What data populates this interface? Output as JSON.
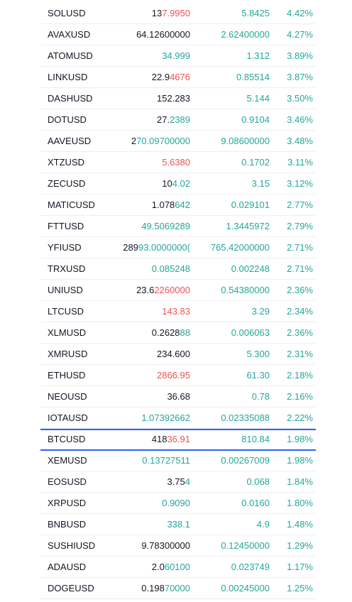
{
  "colors": {
    "text": "#131722",
    "up": "#26a69a",
    "down": "#ef5350",
    "selected_border": "#2962ff",
    "row_divider": "#eceef2"
  },
  "watchlist": {
    "selected_symbol": "BTCUSD",
    "rows": [
      {
        "symbol": "SOLUSD",
        "last_prefix": "13",
        "last_flash": "7.9950",
        "flash": "down",
        "change": "5.8425",
        "change_pct": "4.42%"
      },
      {
        "symbol": "AVAXUSD",
        "last_prefix": "64.12600000",
        "last_flash": "",
        "flash": "none",
        "change": "2.62400000",
        "change_pct": "4.27%"
      },
      {
        "symbol": "ATOMUSD",
        "last_prefix": "",
        "last_flash": "34.999",
        "flash": "up",
        "change": "1.312",
        "change_pct": "3.89%"
      },
      {
        "symbol": "LINKUSD",
        "last_prefix": "22.9",
        "last_flash": "4676",
        "flash": "down",
        "change": "0.85514",
        "change_pct": "3.87%"
      },
      {
        "symbol": "DASHUSD",
        "last_prefix": "152.283",
        "last_flash": "",
        "flash": "none",
        "change": "5.144",
        "change_pct": "3.50%"
      },
      {
        "symbol": "DOTUSD",
        "last_prefix": "27.",
        "last_flash": "2389",
        "flash": "up",
        "change": "0.9104",
        "change_pct": "3.46%"
      },
      {
        "symbol": "AAVEUSD",
        "last_prefix": "2",
        "last_flash": "70.09700000",
        "flash": "up",
        "change": "9.08600000",
        "change_pct": "3.48%"
      },
      {
        "symbol": "XTZUSD",
        "last_prefix": "",
        "last_flash": "5.6380",
        "flash": "down",
        "change": "0.1702",
        "change_pct": "3.11%"
      },
      {
        "symbol": "ZECUSD",
        "last_prefix": "10",
        "last_flash": "4.02",
        "flash": "up",
        "change": "3.15",
        "change_pct": "3.12%"
      },
      {
        "symbol": "MATICUSD",
        "last_prefix": "1.078",
        "last_flash": "642",
        "flash": "up",
        "change": "0.029101",
        "change_pct": "2.77%"
      },
      {
        "symbol": "FTTUSD",
        "last_prefix": "",
        "last_flash": "49.5069289",
        "flash": "up",
        "change": "1.3445972",
        "change_pct": "2.79%"
      },
      {
        "symbol": "YFIUSD",
        "last_prefix": "289",
        "last_flash": "93.0000000(",
        "flash": "up",
        "change": "765.42000000",
        "change_pct": "2.71%"
      },
      {
        "symbol": "TRXUSD",
        "last_prefix": "",
        "last_flash": "0.085248",
        "flash": "up",
        "change": "0.002248",
        "change_pct": "2.71%"
      },
      {
        "symbol": "UNIUSD",
        "last_prefix": "23.6",
        "last_flash": "2260000",
        "flash": "down",
        "change": "0.54380000",
        "change_pct": "2.36%"
      },
      {
        "symbol": "LTCUSD",
        "last_prefix": "",
        "last_flash": "143.83",
        "flash": "down",
        "change": "3.29",
        "change_pct": "2.34%"
      },
      {
        "symbol": "XLMUSD",
        "last_prefix": "0.2628",
        "last_flash": "88",
        "flash": "up",
        "change": "0.006063",
        "change_pct": "2.36%"
      },
      {
        "symbol": "XMRUSD",
        "last_prefix": "234.600",
        "last_flash": "",
        "flash": "none",
        "change": "5.300",
        "change_pct": "2.31%"
      },
      {
        "symbol": "ETHUSD",
        "last_prefix": "",
        "last_flash": "2866.95",
        "flash": "down",
        "change": "61.30",
        "change_pct": "2.18%"
      },
      {
        "symbol": "NEOUSD",
        "last_prefix": "36.68",
        "last_flash": "",
        "flash": "none",
        "change": "0.78",
        "change_pct": "2.16%"
      },
      {
        "symbol": "IOTAUSD",
        "last_prefix": "",
        "last_flash": "1.07392662",
        "flash": "up",
        "change": "0.02335088",
        "change_pct": "2.22%"
      },
      {
        "symbol": "BTCUSD",
        "last_prefix": "418",
        "last_flash": "36.91",
        "flash": "down",
        "change": "810.84",
        "change_pct": "1.98%"
      },
      {
        "symbol": "XEMUSD",
        "last_prefix": "",
        "last_flash": "0.13727511",
        "flash": "up",
        "change": "0.00267009",
        "change_pct": "1.98%"
      },
      {
        "symbol": "EOSUSD",
        "last_prefix": "3.75",
        "last_flash": "4",
        "flash": "up",
        "change": "0.068",
        "change_pct": "1.84%"
      },
      {
        "symbol": "XRPUSD",
        "last_prefix": "",
        "last_flash": "0.9090",
        "flash": "up",
        "change": "0.0160",
        "change_pct": "1.80%"
      },
      {
        "symbol": "BNBUSD",
        "last_prefix": "",
        "last_flash": "338.1",
        "flash": "up",
        "change": "4.9",
        "change_pct": "1.48%"
      },
      {
        "symbol": "SUSHIUSD",
        "last_prefix": "9.78300000",
        "last_flash": "",
        "flash": "none",
        "change": "0.12450000",
        "change_pct": "1.29%"
      },
      {
        "symbol": "ADAUSD",
        "last_prefix": "2.0",
        "last_flash": "60100",
        "flash": "up",
        "change": "0.023749",
        "change_pct": "1.17%"
      },
      {
        "symbol": "DOGEUSD",
        "last_prefix": "0.198",
        "last_flash": "70000",
        "flash": "up",
        "change": "0.00245000",
        "change_pct": "1.25%"
      }
    ]
  }
}
